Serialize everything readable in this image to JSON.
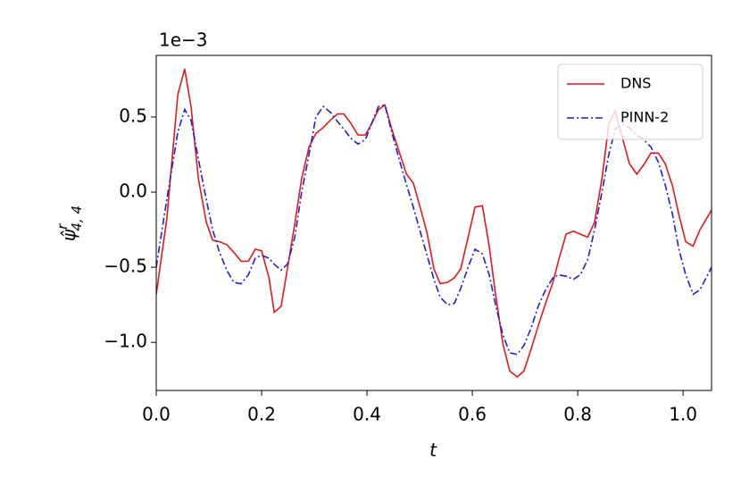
{
  "chart_data": {
    "type": "line",
    "xlabel": "t",
    "ylabel": {
      "base": "ψ̂",
      "sup": "r",
      "sub": "4, 4"
    },
    "offset_label": "1e−3",
    "x": [
      0,
      0.02,
      0.041,
      0.054,
      0.066,
      0.08,
      0.095,
      0.107,
      0.12,
      0.134,
      0.147,
      0.161,
      0.175,
      0.188,
      0.2,
      0.214,
      0.224,
      0.237,
      0.249,
      0.263,
      0.276,
      0.29,
      0.303,
      0.317,
      0.331,
      0.344,
      0.356,
      0.369,
      0.383,
      0.397,
      0.408,
      0.422,
      0.434,
      0.447,
      0.461,
      0.475,
      0.488,
      0.5,
      0.514,
      0.527,
      0.539,
      0.553,
      0.566,
      0.578,
      0.592,
      0.605,
      0.619,
      0.632,
      0.644,
      0.658,
      0.671,
      0.685,
      0.698,
      0.712,
      0.725,
      0.739,
      0.753,
      0.764,
      0.778,
      0.792,
      0.805,
      0.819,
      0.832,
      0.846,
      0.859,
      0.871,
      0.885,
      0.898,
      0.912,
      0.925,
      0.939,
      0.953,
      0.966,
      0.98,
      0.992,
      1.005,
      1.019,
      1.032,
      1.054
    ],
    "series": [
      {
        "name": "DNS",
        "color": "#e8161b",
        "style": "solid",
        "values": [
          -0.68,
          -0.18,
          0.65,
          0.82,
          0.57,
          0.09,
          -0.2,
          -0.32,
          -0.33,
          -0.35,
          -0.4,
          -0.46,
          -0.46,
          -0.38,
          -0.39,
          -0.57,
          -0.8,
          -0.76,
          -0.51,
          -0.21,
          0.09,
          0.3,
          0.39,
          0.43,
          0.48,
          0.52,
          0.52,
          0.46,
          0.38,
          0.38,
          0.45,
          0.55,
          0.58,
          0.42,
          0.27,
          0.12,
          0.06,
          -0.09,
          -0.27,
          -0.51,
          -0.61,
          -0.6,
          -0.57,
          -0.51,
          -0.3,
          -0.1,
          -0.09,
          -0.36,
          -0.68,
          -1.01,
          -1.19,
          -1.23,
          -1.19,
          -1.04,
          -0.89,
          -0.74,
          -0.6,
          -0.45,
          -0.28,
          -0.26,
          -0.28,
          -0.3,
          -0.2,
          0.09,
          0.45,
          0.54,
          0.36,
          0.19,
          0.12,
          0.18,
          0.26,
          0.26,
          0.19,
          0.04,
          -0.15,
          -0.33,
          -0.36,
          -0.25,
          -0.12
        ]
      },
      {
        "name": "PINN-2",
        "color": "#1f1fd6",
        "style": "dashdot",
        "values": [
          -0.5,
          -0.05,
          0.4,
          0.55,
          0.48,
          0.22,
          -0.05,
          -0.25,
          -0.4,
          -0.52,
          -0.6,
          -0.61,
          -0.55,
          -0.44,
          -0.42,
          -0.44,
          -0.48,
          -0.52,
          -0.48,
          -0.3,
          0.0,
          0.25,
          0.5,
          0.57,
          0.53,
          0.47,
          0.42,
          0.36,
          0.32,
          0.35,
          0.45,
          0.57,
          0.58,
          0.4,
          0.22,
          0.05,
          -0.1,
          -0.25,
          -0.42,
          -0.58,
          -0.7,
          -0.75,
          -0.74,
          -0.64,
          -0.5,
          -0.38,
          -0.41,
          -0.55,
          -0.75,
          -0.95,
          -1.07,
          -1.08,
          -1.02,
          -0.9,
          -0.76,
          -0.65,
          -0.57,
          -0.55,
          -0.56,
          -0.58,
          -0.55,
          -0.45,
          -0.25,
          0.0,
          0.25,
          0.42,
          0.45,
          0.43,
          0.38,
          0.35,
          0.3,
          0.2,
          0.05,
          -0.15,
          -0.38,
          -0.55,
          -0.68,
          -0.65,
          -0.5
        ]
      }
    ],
    "xlim": [
      0,
      1.054
    ],
    "ylim": [
      -1.32,
      0.91
    ],
    "xticks": [
      {
        "value": 0,
        "label": "0.0"
      },
      0.2,
      0.4,
      0.6,
      0.8,
      {
        "value": 1,
        "label": "1.0"
      }
    ],
    "yticks": [
      {
        "value": -1,
        "label": "−1.0"
      },
      {
        "value": -0.5,
        "label": "−0.5"
      },
      {
        "value": 0,
        "label": "0.0"
      },
      0.5
    ],
    "legend": "upper right",
    "grid": false
  }
}
